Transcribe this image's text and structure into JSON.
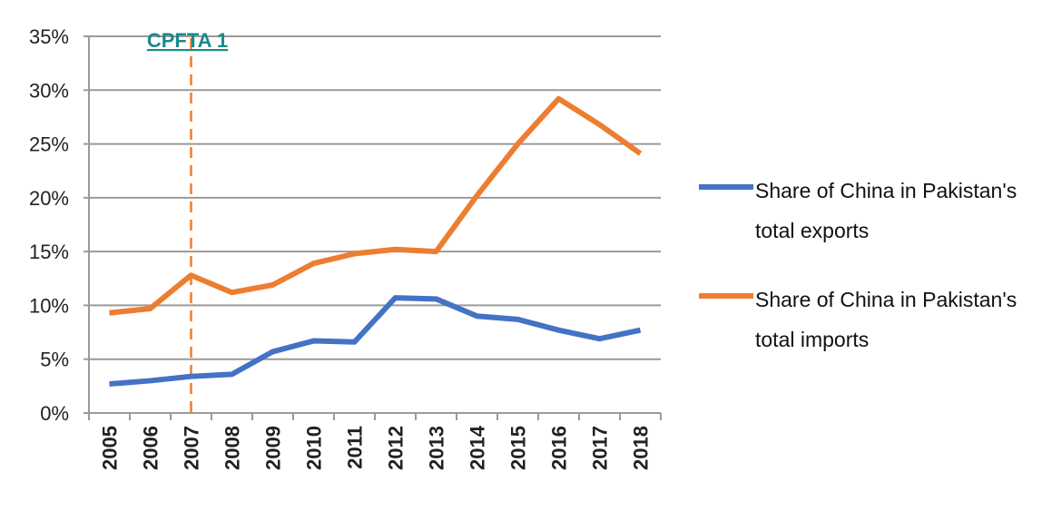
{
  "chart_data": {
    "type": "line",
    "categories": [
      "2005",
      "2006",
      "2007",
      "2008",
      "2009",
      "2010",
      "2011",
      "2012",
      "2013",
      "2014",
      "2015",
      "2016",
      "2017",
      "2018"
    ],
    "series": [
      {
        "name": "Share of China in Pakistan's total exports",
        "color": "#4472c4",
        "values": [
          2.7,
          3.0,
          3.4,
          3.6,
          5.7,
          6.7,
          6.6,
          10.7,
          10.6,
          9.0,
          8.7,
          7.7,
          6.9,
          7.7
        ]
      },
      {
        "name": "Share of China in Pakistan's total imports",
        "color": "#ed7d31",
        "values": [
          9.3,
          9.7,
          12.8,
          11.2,
          11.9,
          13.9,
          14.8,
          15.2,
          15.0,
          20.2,
          25.0,
          29.2,
          26.8,
          24.1
        ]
      }
    ],
    "ylim": [
      0,
      35
    ],
    "yticks": [
      {
        "value": 0,
        "label": "0%"
      },
      {
        "value": 5,
        "label": "5%"
      },
      {
        "value": 10,
        "label": "10%"
      },
      {
        "value": 15,
        "label": "15%"
      },
      {
        "value": 20,
        "label": "20%"
      },
      {
        "value": 25,
        "label": "25%"
      },
      {
        "value": 30,
        "label": "30%"
      },
      {
        "value": 35,
        "label": "35%"
      }
    ],
    "grid": true,
    "legend": "right",
    "annotation": {
      "text": "CPFTA 1",
      "x": "2007",
      "color": "#1a8a8a"
    }
  }
}
